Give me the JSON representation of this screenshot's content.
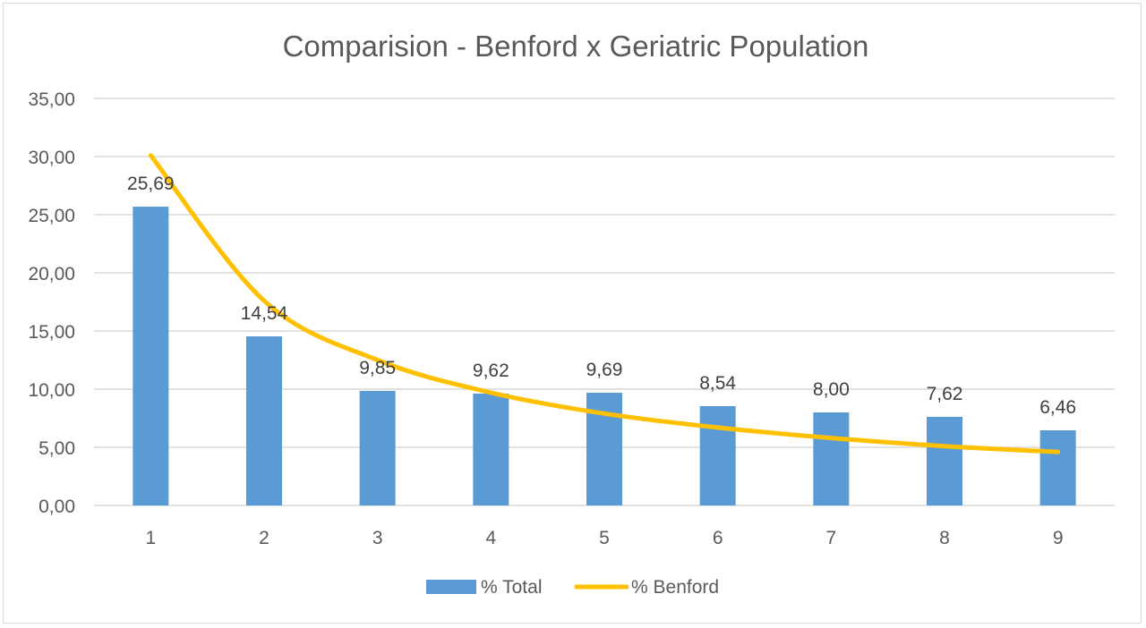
{
  "chart_data": {
    "type": "bar",
    "title": "Comparision - Benford x Geriatric Population",
    "categories": [
      "1",
      "2",
      "3",
      "4",
      "5",
      "6",
      "7",
      "8",
      "9"
    ],
    "series": [
      {
        "name": "% Total",
        "type": "bar",
        "color": "#5b9bd5",
        "values": [
          25.69,
          14.54,
          9.85,
          9.62,
          9.69,
          8.54,
          8.0,
          7.62,
          6.46
        ],
        "labels": [
          "25,69",
          "14,54",
          "9,85",
          "9,62",
          "9,69",
          "8,54",
          "8,00",
          "7,62",
          "6,46"
        ]
      },
      {
        "name": "% Benford",
        "type": "line",
        "smooth": true,
        "color": "#ffc000",
        "values": [
          30.1,
          17.6,
          12.5,
          9.7,
          7.9,
          6.7,
          5.8,
          5.1,
          4.6
        ]
      }
    ],
    "y_ticks": [
      "0,00",
      "5,00",
      "10,00",
      "15,00",
      "20,00",
      "25,00",
      "30,00",
      "35,00"
    ],
    "ylim": [
      0,
      35
    ],
    "grid": true,
    "legend": "bottom"
  }
}
